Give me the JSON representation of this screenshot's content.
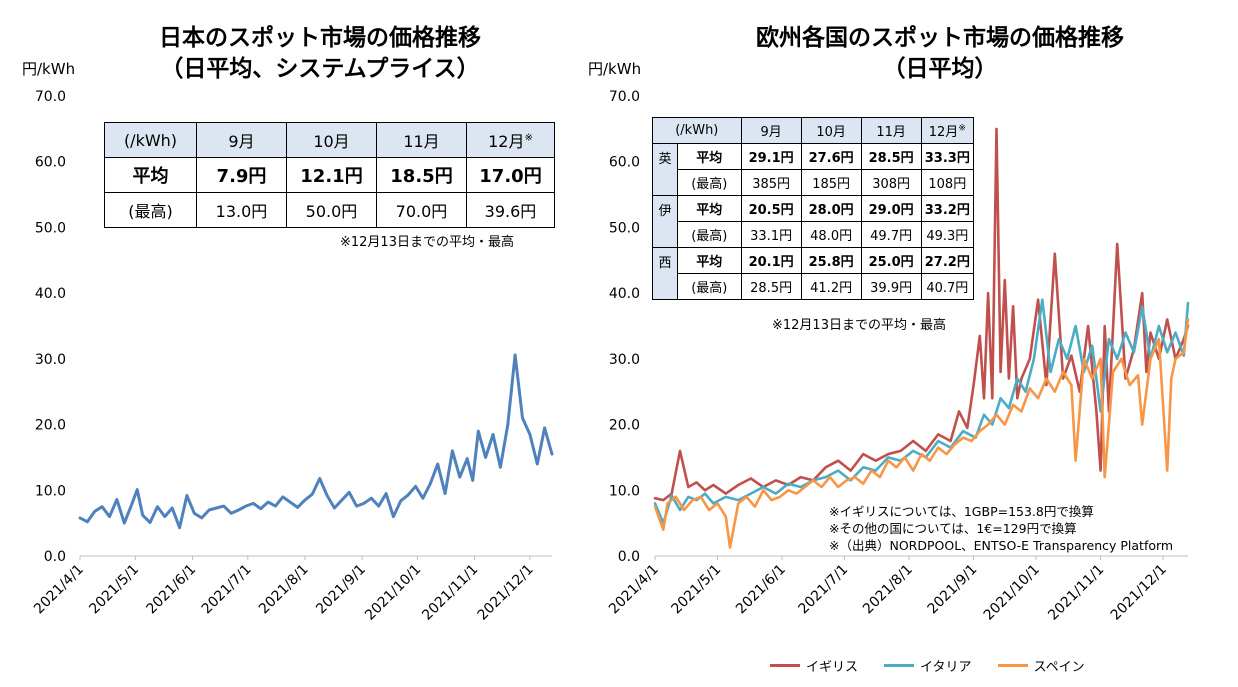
{
  "jp": {
    "title_line1": "日本のスポット市場の価格推移",
    "title_line2": "（日平均、システムプライス）",
    "unit": "円/kWh",
    "table": {
      "header": [
        "(/kWh)",
        "9月",
        "10月",
        "11月",
        "12月"
      ],
      "header_mark": "※",
      "avg_label": "平均",
      "avg": [
        "7.9円",
        "12.1円",
        "18.5円",
        "17.0円"
      ],
      "max_label": "(最高)",
      "max": [
        "13.0円",
        "50.0円",
        "70.0円",
        "39.6円"
      ]
    },
    "note": "※12月13日までの平均・最高"
  },
  "eu": {
    "title_line1": "欧州各国のスポット市場の価格推移",
    "title_line2": "（日平均）",
    "unit": "円/kWh",
    "table": {
      "header": [
        "(/kWh)",
        "9月",
        "10月",
        "11月",
        "12月"
      ],
      "header_mark": "※",
      "avg_label": "平均",
      "max_label": "(最高)",
      "countries": [
        {
          "name": "英",
          "avg": [
            "29.1円",
            "27.6円",
            "28.5円",
            "33.3円"
          ],
          "max": [
            "385円",
            "185円",
            "308円",
            "108円"
          ]
        },
        {
          "name": "伊",
          "avg": [
            "20.5円",
            "28.0円",
            "29.0円",
            "33.2円"
          ],
          "max": [
            "33.1円",
            "48.0円",
            "49.7円",
            "49.3円"
          ]
        },
        {
          "name": "西",
          "avg": [
            "20.1円",
            "25.8円",
            "25.0円",
            "27.2円"
          ],
          "max": [
            "28.5円",
            "41.2円",
            "39.9円",
            "40.7円"
          ]
        }
      ]
    },
    "note": "※12月13日までの平均・最高",
    "footnotes": [
      "※イギリスについては、1GBP=153.8円で換算",
      "※その他の国については、1€=129円で換算",
      "※（出典）NORDPOOL、ENTSO-E Transparency Platform"
    ]
  },
  "chart_data": [
    {
      "type": "line",
      "title": "日本のスポット市場の価格推移（日平均、システムプライス）",
      "ylabel": "円/kWh",
      "ylim": [
        0,
        70
      ],
      "yticks": [
        "0.0",
        "10.0",
        "20.0",
        "30.0",
        "40.0",
        "50.0",
        "60.0",
        "70.0"
      ],
      "x_start": "2021-04-01",
      "x_end": "2021-12-13",
      "xticks": [
        "2021/4/1",
        "2021/5/1",
        "2021/6/1",
        "2021/7/1",
        "2021/8/1",
        "2021/9/1",
        "2021/10/1",
        "2021/11/1",
        "2021/12/1"
      ],
      "xtick_days": [
        0,
        30,
        61,
        91,
        122,
        153,
        183,
        214,
        244
      ],
      "series": [
        {
          "name": "システムプライス",
          "color": "#4f81bd",
          "x": [
            0,
            4,
            8,
            12,
            16,
            20,
            24,
            28,
            31,
            34,
            38,
            42,
            46,
            50,
            54,
            58,
            62,
            66,
            70,
            74,
            78,
            82,
            86,
            90,
            94,
            98,
            102,
            106,
            110,
            114,
            118,
            122,
            126,
            130,
            134,
            138,
            142,
            146,
            150,
            154,
            158,
            162,
            166,
            170,
            174,
            178,
            182,
            186,
            190,
            194,
            198,
            202,
            206,
            210,
            213,
            216,
            220,
            224,
            228,
            232,
            236,
            240,
            244,
            248,
            252,
            256
          ],
          "values": [
            5.8,
            5.2,
            6.8,
            7.5,
            6.0,
            8.6,
            5.0,
            7.8,
            10.1,
            6.2,
            5.1,
            7.5,
            6.0,
            7.3,
            4.3,
            9.2,
            6.5,
            5.8,
            7.0,
            7.3,
            7.6,
            6.5,
            7.0,
            7.6,
            8.0,
            7.2,
            8.2,
            7.6,
            9.0,
            8.2,
            7.4,
            8.5,
            9.4,
            11.8,
            9.2,
            7.3,
            8.5,
            9.7,
            7.6,
            8.0,
            8.8,
            7.6,
            9.5,
            6.0,
            8.4,
            9.3,
            10.6,
            8.8,
            11.0,
            14.0,
            9.5,
            16.0,
            12.0,
            14.8,
            11.5,
            19.0,
            15.0,
            18.5,
            13.5,
            20.0,
            30.6,
            21.0,
            18.5,
            14.0,
            19.5,
            15.5
          ]
        }
      ]
    },
    {
      "type": "line",
      "title": "欧州各国のスポット市場の価格推移（日平均）",
      "ylabel": "円/kWh",
      "ylim": [
        0,
        70
      ],
      "yticks": [
        "0.0",
        "10.0",
        "20.0",
        "30.0",
        "40.0",
        "50.0",
        "60.0",
        "70.0"
      ],
      "x_start": "2021-04-01",
      "x_end": "2021-12-13",
      "xticks": [
        "2021/4/1",
        "2021/5/1",
        "2021/6/1",
        "2021/7/1",
        "2021/8/1",
        "2021/9/1",
        "2021/10/1",
        "2021/11/1",
        "2021/12/1"
      ],
      "xtick_days": [
        0,
        30,
        61,
        91,
        122,
        153,
        183,
        214,
        244
      ],
      "legend_position": "bottom",
      "series": [
        {
          "name": "イギリス",
          "color": "#c0504d",
          "x": [
            0,
            4,
            8,
            12,
            16,
            20,
            24,
            28,
            34,
            40,
            46,
            52,
            58,
            64,
            70,
            76,
            82,
            88,
            94,
            100,
            106,
            112,
            118,
            124,
            130,
            136,
            142,
            146,
            150,
            153,
            156,
            158,
            160,
            162,
            164,
            166,
            168,
            170,
            172,
            174,
            176,
            180,
            184,
            188,
            192,
            196,
            200,
            204,
            208,
            212,
            214,
            216,
            218,
            222,
            226,
            230,
            234,
            236,
            238,
            242,
            246,
            250,
            254,
            256
          ],
          "values": [
            8.8,
            8.5,
            9.5,
            16.0,
            10.5,
            11.2,
            10.0,
            10.8,
            9.5,
            10.8,
            11.8,
            10.5,
            11.5,
            10.8,
            12.0,
            11.5,
            13.5,
            14.5,
            13.0,
            15.5,
            14.5,
            15.5,
            16.0,
            17.5,
            16.0,
            18.5,
            17.5,
            22.0,
            19.5,
            26.0,
            33.5,
            24.0,
            40.0,
            24.0,
            65.0,
            28.0,
            42.0,
            27.0,
            38.0,
            24.0,
            27.0,
            30.0,
            39.0,
            26.0,
            46.0,
            27.0,
            30.5,
            25.0,
            35.0,
            22.0,
            13.0,
            35.0,
            22.0,
            47.5,
            27.0,
            31.5,
            40.0,
            28.0,
            34.0,
            30.0,
            36.0,
            30.0,
            33.0,
            35.0
          ]
        },
        {
          "name": "イタリア",
          "color": "#4bacc6",
          "x": [
            0,
            4,
            8,
            12,
            16,
            20,
            24,
            28,
            34,
            40,
            46,
            52,
            58,
            64,
            70,
            76,
            82,
            88,
            94,
            100,
            106,
            112,
            118,
            124,
            130,
            136,
            142,
            148,
            154,
            158,
            162,
            166,
            170,
            174,
            178,
            182,
            186,
            190,
            194,
            198,
            202,
            206,
            210,
            214,
            218,
            222,
            226,
            230,
            234,
            238,
            242,
            246,
            250,
            254,
            256
          ],
          "values": [
            8.0,
            5.0,
            9.2,
            7.0,
            9.0,
            8.5,
            9.5,
            8.0,
            9.0,
            8.5,
            9.5,
            10.5,
            9.5,
            11.0,
            10.5,
            11.5,
            12.0,
            13.0,
            11.5,
            13.5,
            13.0,
            15.0,
            14.5,
            16.0,
            15.0,
            17.5,
            16.5,
            19.0,
            18.0,
            21.5,
            20.0,
            24.0,
            22.5,
            27.0,
            25.0,
            30.0,
            39.0,
            28.0,
            33.0,
            30.0,
            35.0,
            28.0,
            32.0,
            22.0,
            33.0,
            30.0,
            34.0,
            31.0,
            38.0,
            30.0,
            35.0,
            31.0,
            34.0,
            30.5,
            38.5
          ]
        },
        {
          "name": "スペイン",
          "color": "#f79646",
          "x": [
            0,
            4,
            6,
            10,
            14,
            18,
            22,
            26,
            30,
            34,
            36,
            40,
            44,
            48,
            52,
            56,
            60,
            64,
            68,
            72,
            76,
            80,
            84,
            88,
            92,
            96,
            100,
            104,
            108,
            112,
            116,
            120,
            124,
            128,
            132,
            136,
            140,
            144,
            148,
            152,
            156,
            160,
            164,
            168,
            172,
            176,
            180,
            184,
            188,
            192,
            196,
            200,
            202,
            206,
            210,
            214,
            216,
            220,
            224,
            228,
            232,
            234,
            238,
            242,
            246,
            248,
            250,
            254,
            256
          ],
          "values": [
            7.5,
            4.0,
            8.0,
            9.0,
            7.0,
            8.5,
            9.0,
            7.0,
            8.0,
            6.0,
            1.3,
            8.0,
            9.0,
            7.5,
            10.0,
            8.5,
            9.0,
            10.0,
            9.5,
            10.5,
            11.5,
            10.5,
            12.0,
            10.5,
            11.5,
            12.0,
            11.0,
            13.0,
            12.0,
            14.5,
            13.5,
            15.0,
            13.0,
            15.5,
            14.5,
            16.5,
            15.5,
            17.0,
            18.0,
            17.5,
            19.0,
            20.0,
            21.5,
            20.0,
            23.0,
            22.0,
            25.5,
            24.0,
            27.0,
            25.0,
            28.0,
            26.0,
            14.5,
            30.0,
            27.0,
            30.0,
            12.0,
            28.0,
            30.0,
            26.0,
            27.5,
            20.0,
            30.0,
            33.0,
            13.0,
            27.0,
            30.0,
            31.0,
            36.0
          ]
        }
      ]
    }
  ]
}
